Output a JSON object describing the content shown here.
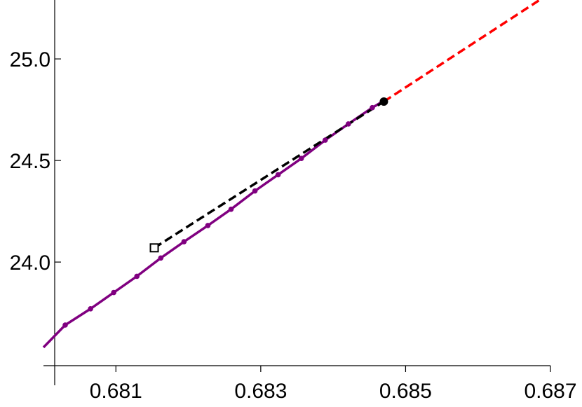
{
  "chart_data": {
    "type": "line",
    "title": "",
    "xlabel": "",
    "ylabel": "",
    "xlim": [
      0.68,
      0.687
    ],
    "ylim": [
      23.49,
      25.29
    ],
    "grid": false,
    "legend": "none",
    "x_ticks": [
      0.681,
      0.683,
      0.685,
      0.687
    ],
    "x_tick_labels": [
      "0.681",
      "0.683",
      "0.685",
      "0.687"
    ],
    "y_ticks": [
      24.0,
      24.5,
      25.0
    ],
    "y_tick_labels": [
      "24.0",
      "24.5",
      "25.0"
    ],
    "series": [
      {
        "style": "solid-with-markers",
        "color": "#800080",
        "x": [
          0.68,
          0.6803,
          0.68065,
          0.68097,
          0.68129,
          0.68162,
          0.68194,
          0.68227,
          0.68259,
          0.68292,
          0.68324,
          0.68356,
          0.68389,
          0.68421,
          0.68454,
          0.68468
        ],
        "y": [
          23.58,
          23.69,
          23.77,
          23.85,
          23.93,
          24.02,
          24.1,
          24.18,
          24.26,
          24.35,
          24.43,
          24.51,
          24.6,
          24.68,
          24.76,
          24.79
        ],
        "marker_indices": [
          1,
          2,
          3,
          4,
          5,
          6,
          7,
          8,
          9,
          10,
          11,
          12,
          13,
          14
        ]
      },
      {
        "style": "dashed",
        "color": "#000000",
        "x": [
          0.68153,
          0.6847
        ],
        "y": [
          24.07,
          24.79
        ]
      },
      {
        "style": "dashed",
        "color": "#ff0000",
        "x": [
          0.6847,
          0.68685
        ],
        "y": [
          24.79,
          25.29
        ]
      }
    ],
    "points": [
      {
        "marker": "open-square",
        "color": "#000000",
        "x": 0.68153,
        "y": 24.07
      },
      {
        "marker": "filled-circle",
        "color": "#000000",
        "x": 0.6847,
        "y": 24.79
      }
    ]
  }
}
